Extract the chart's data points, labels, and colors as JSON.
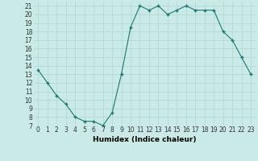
{
  "x": [
    0,
    1,
    2,
    3,
    4,
    5,
    6,
    7,
    8,
    9,
    10,
    11,
    12,
    13,
    14,
    15,
    16,
    17,
    18,
    19,
    20,
    21,
    22,
    23
  ],
  "y": [
    13.5,
    12,
    10.5,
    9.5,
    8,
    7.5,
    7.5,
    7,
    8.5,
    13,
    18.5,
    21,
    20.5,
    21,
    20,
    20.5,
    21,
    20.5,
    20.5,
    20.5,
    18,
    17,
    15,
    13
  ],
  "line_color": "#1a7a6e",
  "marker_color": "#1a7a6e",
  "bg_color": "#c9eae7",
  "grid_color": "#b0d5d0",
  "xlabel": "Humidex (Indice chaleur)",
  "xlim": [
    -0.5,
    23.5
  ],
  "ylim": [
    7,
    21.5
  ],
  "yticks": [
    7,
    8,
    9,
    10,
    11,
    12,
    13,
    14,
    15,
    16,
    17,
    18,
    19,
    20,
    21
  ],
  "xticks": [
    0,
    1,
    2,
    3,
    4,
    5,
    6,
    7,
    8,
    9,
    10,
    11,
    12,
    13,
    14,
    15,
    16,
    17,
    18,
    19,
    20,
    21,
    22,
    23
  ],
  "tick_fontsize": 5.5,
  "xlabel_fontsize": 6.5
}
